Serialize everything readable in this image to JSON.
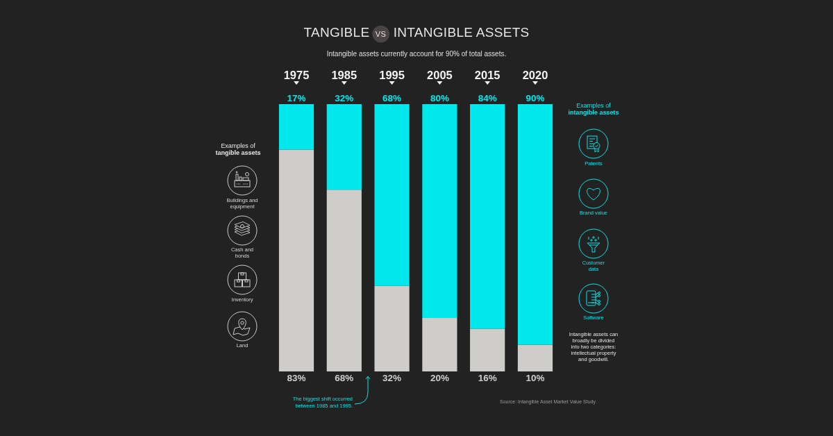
{
  "chart_data": {
    "type": "bar",
    "title": "TANGIBLE VS INTANGIBLE ASSETS",
    "subtitle": "Intangible assets currently account for 90% of total assets.",
    "categories": [
      "1975",
      "1985",
      "1995",
      "2005",
      "2015",
      "2020"
    ],
    "stacked": true,
    "series": [
      {
        "color": "#cfcdca",
        "values": [
          83,
          68,
          32,
          20,
          16,
          10
        ],
        "value_labels": [
          "83%",
          "68%",
          "32%",
          "20%",
          "16%",
          "10%"
        ]
      },
      {
        "color": "#00e8ec",
        "values": [
          17,
          32,
          68,
          80,
          84,
          90
        ],
        "value_labels": [
          "17%",
          "32%",
          "68%",
          "80%",
          "84%",
          "90%"
        ]
      }
    ],
    "annotations": [
      "Examples of tangible assets",
      "Buildings and equipment",
      "Cash and bonds",
      "Inventory",
      "Land",
      "Examples of intangible assets",
      "Patents",
      "Brand value",
      "Customer data",
      "Software",
      "Intangible assets can broadly be divided into two categories: intellectual property and goodwill.",
      "The biggest shift occurred between 1985 and 1995.",
      "Source: Intangible Asset Market Value Study"
    ]
  }
}
